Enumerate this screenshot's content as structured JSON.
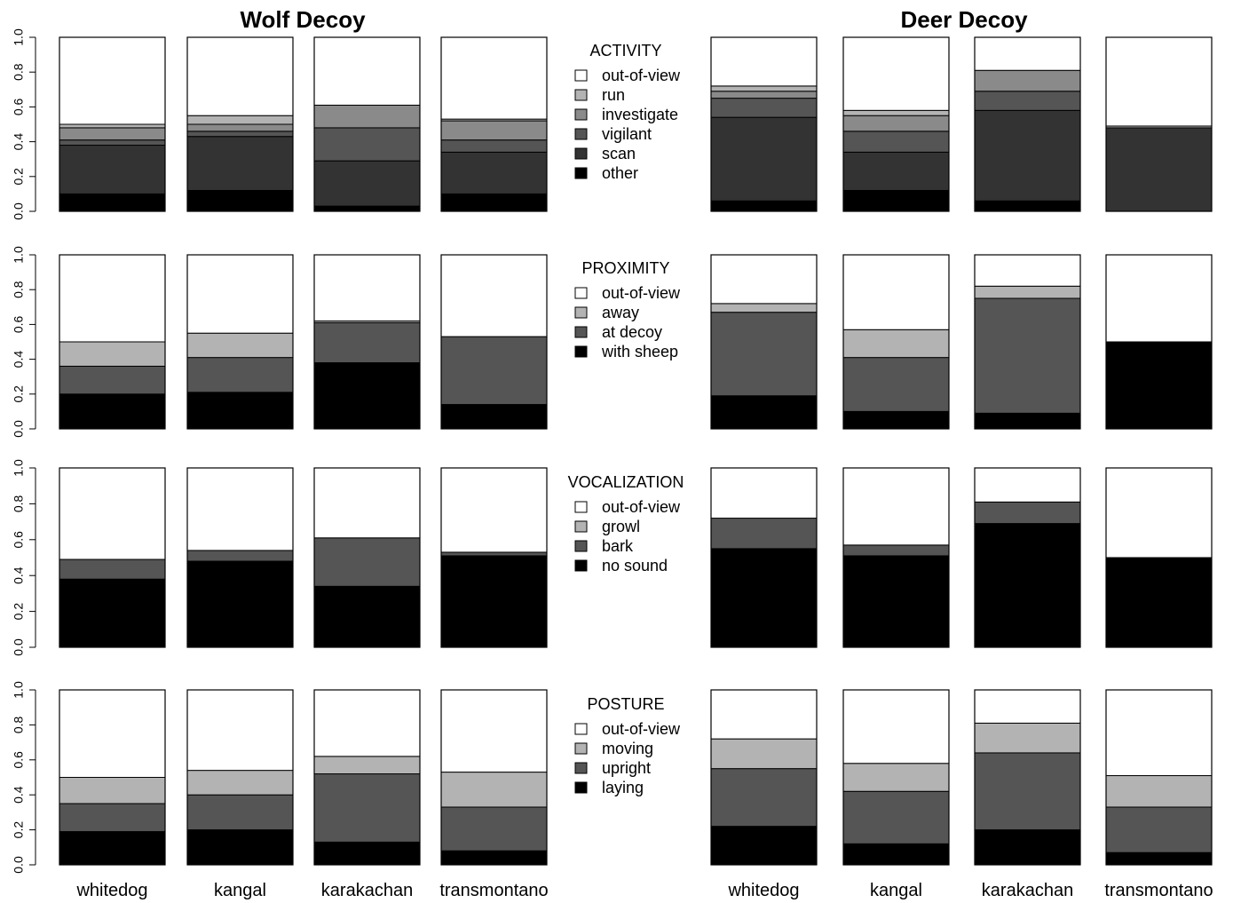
{
  "titles": {
    "left": "Wolf Decoy",
    "right": "Deer Decoy"
  },
  "categories": [
    "whitedog",
    "kangal",
    "karakachan",
    "transmontano"
  ],
  "yticks": [
    "0.0",
    "0.2",
    "0.4",
    "0.6",
    "0.8",
    "1.0"
  ],
  "ylim": [
    0,
    1
  ],
  "colors": {
    "white": "#ffffff",
    "light": "#b3b3b3",
    "mid": "#8a8a8a",
    "dark": "#555555",
    "darker": "#333333",
    "black": "#000000"
  },
  "chart_data": [
    {
      "type": "bar",
      "stacked": true,
      "panel": "ACTIVITY",
      "decoy": "Wolf Decoy",
      "categories": [
        "whitedog",
        "kangal",
        "karakachan",
        "transmontano"
      ],
      "series": [
        {
          "name": "other",
          "color": "black",
          "values": [
            0.1,
            0.12,
            0.03,
            0.1
          ]
        },
        {
          "name": "scan",
          "color": "darker",
          "values": [
            0.28,
            0.31,
            0.26,
            0.24
          ]
        },
        {
          "name": "vigilant",
          "color": "dark",
          "values": [
            0.03,
            0.03,
            0.19,
            0.07
          ]
        },
        {
          "name": "investigate",
          "color": "mid",
          "values": [
            0.07,
            0.04,
            0.13,
            0.11
          ]
        },
        {
          "name": "run",
          "color": "light",
          "values": [
            0.02,
            0.05,
            0.0,
            0.01
          ]
        },
        {
          "name": "out-of-view",
          "color": "white",
          "values": [
            0.5,
            0.45,
            0.39,
            0.47
          ]
        }
      ],
      "ylim": [
        0,
        1
      ]
    },
    {
      "type": "bar",
      "stacked": true,
      "panel": "ACTIVITY",
      "decoy": "Deer Decoy",
      "categories": [
        "whitedog",
        "kangal",
        "karakachan",
        "transmontano"
      ],
      "series": [
        {
          "name": "other",
          "color": "black",
          "values": [
            0.06,
            0.12,
            0.06,
            0.0
          ]
        },
        {
          "name": "scan",
          "color": "darker",
          "values": [
            0.48,
            0.22,
            0.52,
            0.48
          ]
        },
        {
          "name": "vigilant",
          "color": "dark",
          "values": [
            0.11,
            0.12,
            0.11,
            0.0
          ]
        },
        {
          "name": "investigate",
          "color": "mid",
          "values": [
            0.04,
            0.09,
            0.12,
            0.0
          ]
        },
        {
          "name": "run",
          "color": "light",
          "values": [
            0.03,
            0.03,
            0.0,
            0.01
          ]
        },
        {
          "name": "out-of-view",
          "color": "white",
          "values": [
            0.28,
            0.42,
            0.19,
            0.51
          ]
        }
      ],
      "ylim": [
        0,
        1
      ]
    },
    {
      "type": "bar",
      "stacked": true,
      "panel": "PROXIMITY",
      "decoy": "Wolf Decoy",
      "categories": [
        "whitedog",
        "kangal",
        "karakachan",
        "transmontano"
      ],
      "series": [
        {
          "name": "with sheep",
          "color": "black",
          "values": [
            0.2,
            0.21,
            0.38,
            0.14
          ]
        },
        {
          "name": "at decoy",
          "color": "dark",
          "values": [
            0.16,
            0.2,
            0.23,
            0.39
          ]
        },
        {
          "name": "away",
          "color": "light",
          "values": [
            0.14,
            0.14,
            0.01,
            0.0
          ]
        },
        {
          "name": "out-of-view",
          "color": "white",
          "values": [
            0.5,
            0.45,
            0.38,
            0.47
          ]
        }
      ],
      "ylim": [
        0,
        1
      ]
    },
    {
      "type": "bar",
      "stacked": true,
      "panel": "PROXIMITY",
      "decoy": "Deer Decoy",
      "categories": [
        "whitedog",
        "kangal",
        "karakachan",
        "transmontano"
      ],
      "series": [
        {
          "name": "with sheep",
          "color": "black",
          "values": [
            0.19,
            0.1,
            0.09,
            0.5
          ]
        },
        {
          "name": "at decoy",
          "color": "dark",
          "values": [
            0.48,
            0.31,
            0.66,
            0.0
          ]
        },
        {
          "name": "away",
          "color": "light",
          "values": [
            0.05,
            0.16,
            0.07,
            0.0
          ]
        },
        {
          "name": "out-of-view",
          "color": "white",
          "values": [
            0.28,
            0.43,
            0.18,
            0.5
          ]
        }
      ],
      "ylim": [
        0,
        1
      ]
    },
    {
      "type": "bar",
      "stacked": true,
      "panel": "VOCALIZATION",
      "decoy": "Wolf Decoy",
      "categories": [
        "whitedog",
        "kangal",
        "karakachan",
        "transmontano"
      ],
      "series": [
        {
          "name": "no sound",
          "color": "black",
          "values": [
            0.38,
            0.48,
            0.34,
            0.51
          ]
        },
        {
          "name": "bark",
          "color": "dark",
          "values": [
            0.11,
            0.06,
            0.27,
            0.02
          ]
        },
        {
          "name": "growl",
          "color": "light",
          "values": [
            0.0,
            0.0,
            0.0,
            0.0
          ]
        },
        {
          "name": "out-of-view",
          "color": "white",
          "values": [
            0.51,
            0.46,
            0.39,
            0.47
          ]
        }
      ],
      "ylim": [
        0,
        1
      ]
    },
    {
      "type": "bar",
      "stacked": true,
      "panel": "VOCALIZATION",
      "decoy": "Deer Decoy",
      "categories": [
        "whitedog",
        "kangal",
        "karakachan",
        "transmontano"
      ],
      "series": [
        {
          "name": "no sound",
          "color": "black",
          "values": [
            0.55,
            0.51,
            0.69,
            0.5
          ]
        },
        {
          "name": "bark",
          "color": "dark",
          "values": [
            0.17,
            0.06,
            0.12,
            0.0
          ]
        },
        {
          "name": "growl",
          "color": "light",
          "values": [
            0.0,
            0.0,
            0.0,
            0.0
          ]
        },
        {
          "name": "out-of-view",
          "color": "white",
          "values": [
            0.28,
            0.43,
            0.19,
            0.5
          ]
        }
      ],
      "ylim": [
        0,
        1
      ]
    },
    {
      "type": "bar",
      "stacked": true,
      "panel": "POSTURE",
      "decoy": "Wolf Decoy",
      "categories": [
        "whitedog",
        "kangal",
        "karakachan",
        "transmontano"
      ],
      "series": [
        {
          "name": "laying",
          "color": "black",
          "values": [
            0.19,
            0.2,
            0.13,
            0.08
          ]
        },
        {
          "name": "upright",
          "color": "dark",
          "values": [
            0.16,
            0.2,
            0.39,
            0.25
          ]
        },
        {
          "name": "moving",
          "color": "light",
          "values": [
            0.15,
            0.14,
            0.1,
            0.2
          ]
        },
        {
          "name": "out-of-view",
          "color": "white",
          "values": [
            0.5,
            0.46,
            0.38,
            0.47
          ]
        }
      ],
      "ylim": [
        0,
        1
      ]
    },
    {
      "type": "bar",
      "stacked": true,
      "panel": "POSTURE",
      "decoy": "Deer Decoy",
      "categories": [
        "whitedog",
        "kangal",
        "karakachan",
        "transmontano"
      ],
      "series": [
        {
          "name": "laying",
          "color": "black",
          "values": [
            0.22,
            0.12,
            0.2,
            0.07
          ]
        },
        {
          "name": "upright",
          "color": "dark",
          "values": [
            0.33,
            0.3,
            0.44,
            0.26
          ]
        },
        {
          "name": "moving",
          "color": "light",
          "values": [
            0.17,
            0.16,
            0.17,
            0.18
          ]
        },
        {
          "name": "out-of-view",
          "color": "white",
          "values": [
            0.28,
            0.42,
            0.19,
            0.49
          ]
        }
      ],
      "ylim": [
        0,
        1
      ]
    }
  ],
  "legends": [
    {
      "title": "ACTIVITY",
      "items": [
        {
          "label": "out-of-view",
          "color": "white"
        },
        {
          "label": "run",
          "color": "light"
        },
        {
          "label": "investigate",
          "color": "mid"
        },
        {
          "label": "vigilant",
          "color": "dark"
        },
        {
          "label": "scan",
          "color": "darker"
        },
        {
          "label": "other",
          "color": "black"
        }
      ]
    },
    {
      "title": "PROXIMITY",
      "items": [
        {
          "label": "out-of-view",
          "color": "white"
        },
        {
          "label": "away",
          "color": "light"
        },
        {
          "label": "at decoy",
          "color": "dark"
        },
        {
          "label": "with sheep",
          "color": "black"
        }
      ]
    },
    {
      "title": "VOCALIZATION",
      "items": [
        {
          "label": "out-of-view",
          "color": "white"
        },
        {
          "label": "growl",
          "color": "light"
        },
        {
          "label": "bark",
          "color": "dark"
        },
        {
          "label": "no sound",
          "color": "black"
        }
      ]
    },
    {
      "title": "POSTURE",
      "items": [
        {
          "label": "out-of-view",
          "color": "white"
        },
        {
          "label": "moving",
          "color": "light"
        },
        {
          "label": "upright",
          "color": "dark"
        },
        {
          "label": "laying",
          "color": "black"
        }
      ]
    }
  ]
}
